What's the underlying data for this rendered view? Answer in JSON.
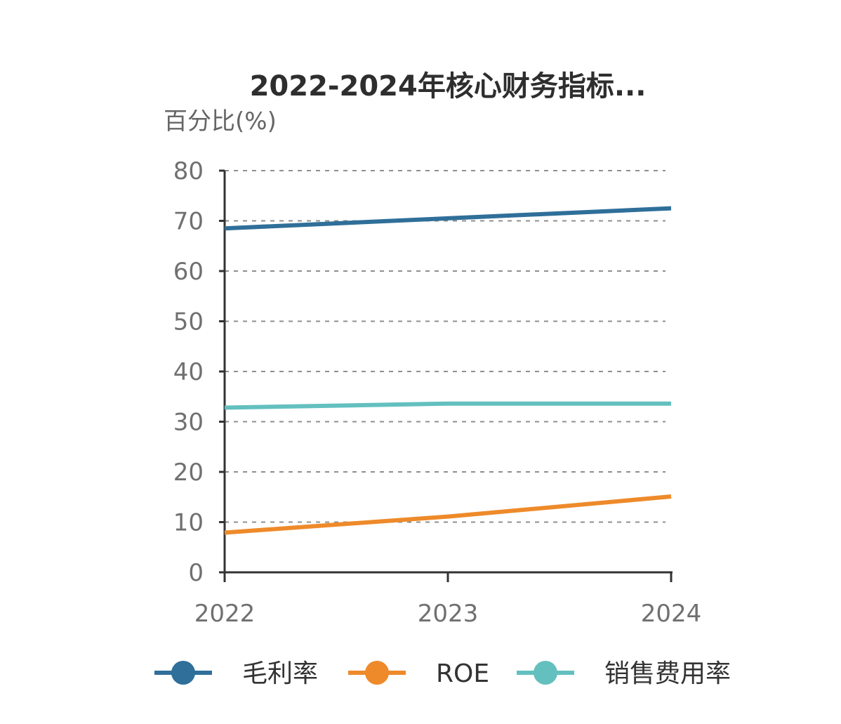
{
  "chart_data": {
    "type": "line",
    "title": "2022-2024年核心财务指标...",
    "xlabel": "",
    "ylabel": "百分比(%)",
    "categories": [
      "2022",
      "2023",
      "2024"
    ],
    "ylim": [
      0,
      80
    ],
    "yticks": [
      "0",
      "10",
      "20",
      "30",
      "40",
      "50",
      "60",
      "70",
      "80"
    ],
    "grid": true,
    "legend_position": "bottom",
    "series": [
      {
        "name": "毛利率",
        "values": [
          68.5,
          70.5,
          72.5
        ],
        "color": "#2f6f99"
      },
      {
        "name": "ROE",
        "values": [
          7.9,
          11.1,
          15.1
        ],
        "color": "#ee8a2a"
      },
      {
        "name": "销售费用率",
        "values": [
          32.8,
          33.6,
          33.6
        ],
        "color": "#63c0bf"
      }
    ]
  }
}
